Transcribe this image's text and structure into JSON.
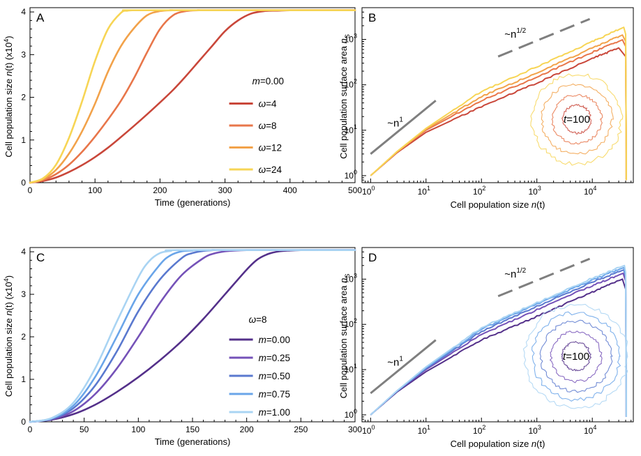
{
  "chart_data": [
    {
      "panel": "A",
      "type": "line",
      "xlabel": "Time (generations)",
      "ylabel_main": "Cell population size ",
      "ylabel_italic": "n",
      "ylabel_tail": "(t) (x10",
      "ylabel_sup": "4",
      "ylabel_close": ")",
      "xlim": [
        0,
        500
      ],
      "ylim": [
        0,
        4.1
      ],
      "xticks": [
        0,
        100,
        200,
        300,
        400,
        500
      ],
      "yticks": [
        0,
        1,
        2,
        3,
        4
      ],
      "legend_title_var": "m",
      "legend_title_val": "=0.00",
      "legend_position": "center-right",
      "series": [
        {
          "name_var": "ω",
          "name_val": "=4",
          "color": "#c9473a",
          "x": [
            0,
            20,
            40,
            60,
            80,
            100,
            120,
            140,
            160,
            180,
            200,
            220,
            240,
            260,
            280,
            300,
            320,
            340,
            360,
            380,
            400,
            420,
            440,
            500
          ],
          "y": [
            0,
            0.04,
            0.12,
            0.25,
            0.41,
            0.6,
            0.82,
            1.07,
            1.33,
            1.6,
            1.88,
            2.17,
            2.5,
            2.85,
            3.2,
            3.55,
            3.8,
            3.96,
            4.02,
            4.03,
            4.04,
            4.04,
            4.04,
            4.04
          ]
        },
        {
          "name_var": "ω",
          "name_val": "=8",
          "color": "#e8764a",
          "x": [
            0,
            20,
            40,
            60,
            80,
            100,
            120,
            140,
            160,
            180,
            200,
            220,
            240,
            260,
            280,
            500
          ],
          "y": [
            0,
            0.06,
            0.2,
            0.42,
            0.72,
            1.08,
            1.48,
            1.92,
            2.45,
            3.05,
            3.6,
            3.92,
            4.02,
            4.04,
            4.04,
            4.04
          ]
        },
        {
          "name_var": "ω",
          "name_val": "=12",
          "color": "#f2a24a",
          "x": [
            0,
            20,
            40,
            60,
            80,
            100,
            120,
            140,
            160,
            180,
            200,
            220,
            240,
            500
          ],
          "y": [
            0,
            0.08,
            0.3,
            0.68,
            1.2,
            1.85,
            2.6,
            3.2,
            3.62,
            3.92,
            4.02,
            4.04,
            4.04,
            4.04
          ]
        },
        {
          "name_var": "ω",
          "name_val": "=24",
          "color": "#f7d555",
          "x": [
            0,
            20,
            40,
            60,
            80,
            100,
            120,
            140,
            150,
            160,
            170,
            500
          ],
          "y": [
            0,
            0.1,
            0.42,
            1.05,
            1.9,
            2.85,
            3.6,
            3.98,
            4.03,
            4.04,
            4.04,
            4.04
          ]
        }
      ]
    },
    {
      "panel": "B",
      "type": "line",
      "scale": "log-log",
      "xlabel_main": "Cell population size ",
      "xlabel_italic": "n",
      "xlabel_tail": "(t)",
      "ylabel_main": "Cell population surface area ",
      "ylabel_italic": "n",
      "ylabel_sub": "S",
      "xlim": [
        0.7,
        55000
      ],
      "ylim": [
        0.7,
        5000
      ],
      "xtick_exponents": [
        0,
        1,
        2,
        3,
        4
      ],
      "ytick_exponents": [
        0,
        1,
        2,
        3
      ],
      "annotations": [
        {
          "text": "~n",
          "sup": "1"
        },
        {
          "text": "~n",
          "sup": "1/2"
        },
        {
          "italic": "t",
          "text": "=100"
        }
      ],
      "guide_slopes": [
        1,
        0.5
      ],
      "series": [
        {
          "name": "ω=4",
          "color": "#c9473a",
          "x": [
            1,
            3,
            10,
            100,
            1000,
            10000,
            30000,
            40000,
            41000,
            41000
          ],
          "y": [
            1,
            3.2,
            9,
            33,
            110,
            380,
            650,
            420,
            3,
            0.8
          ]
        },
        {
          "name": "ω=8",
          "color": "#e8764a",
          "x": [
            1,
            3,
            10,
            100,
            1000,
            10000,
            35000,
            40000,
            41000,
            41000
          ],
          "y": [
            1,
            3.3,
            10,
            45,
            150,
            520,
            980,
            700,
            3,
            0.8
          ]
        },
        {
          "name": "ω=12",
          "color": "#f2a24a",
          "x": [
            1,
            3,
            10,
            100,
            1000,
            10000,
            35000,
            40000,
            41000,
            41000
          ],
          "y": [
            1,
            3.3,
            10.5,
            55,
            185,
            650,
            1250,
            900,
            3,
            0.8
          ]
        },
        {
          "name": "ω=24",
          "color": "#f7d555",
          "x": [
            1,
            3,
            10,
            100,
            1000,
            10000,
            37000,
            40000,
            41000,
            41000
          ],
          "y": [
            1,
            3.4,
            11,
            72,
            250,
            900,
            1850,
            1300,
            3,
            0.8
          ]
        }
      ]
    },
    {
      "panel": "C",
      "type": "line",
      "xlabel": "Time (generations)",
      "ylabel_main": "Cell population size ",
      "ylabel_italic": "n",
      "ylabel_tail": "(t) (x10",
      "ylabel_sup": "4",
      "ylabel_close": ")",
      "xlim": [
        0,
        300
      ],
      "ylim": [
        0,
        4.1
      ],
      "xticks": [
        0,
        50,
        100,
        150,
        200,
        250,
        300
      ],
      "yticks": [
        0,
        1,
        2,
        3,
        4
      ],
      "legend_title_var": "ω",
      "legend_title_val": "=8",
      "legend_position": "center-right",
      "series": [
        {
          "name_var": "m",
          "name_val": "=0.00",
          "color": "#54308a",
          "x": [
            0,
            20,
            40,
            60,
            80,
            100,
            120,
            140,
            160,
            180,
            200,
            210,
            220,
            230,
            240,
            250,
            260,
            300
          ],
          "y": [
            0,
            0.05,
            0.18,
            0.4,
            0.7,
            1.05,
            1.45,
            1.9,
            2.42,
            3.0,
            3.58,
            3.82,
            3.95,
            4.01,
            4.03,
            4.04,
            4.04,
            4.04
          ]
        },
        {
          "name_var": "m",
          "name_val": "=0.25",
          "color": "#7552b8",
          "x": [
            0,
            20,
            40,
            60,
            80,
            100,
            120,
            140,
            160,
            170,
            180,
            190,
            200,
            210,
            300
          ],
          "y": [
            0,
            0.06,
            0.25,
            0.65,
            1.25,
            2.0,
            2.8,
            3.45,
            3.85,
            3.96,
            4.01,
            4.03,
            4.04,
            4.04,
            4.04
          ]
        },
        {
          "name_var": "m",
          "name_val": "=0.50",
          "color": "#5a79cf",
          "x": [
            0,
            20,
            40,
            60,
            80,
            100,
            120,
            140,
            150,
            160,
            170,
            180,
            300
          ],
          "y": [
            0,
            0.07,
            0.32,
            0.85,
            1.65,
            2.6,
            3.35,
            3.85,
            3.97,
            4.02,
            4.04,
            4.04,
            4.04
          ]
        },
        {
          "name_var": "m",
          "name_val": "=0.75",
          "color": "#6aa5e9",
          "x": [
            0,
            20,
            40,
            60,
            80,
            100,
            120,
            130,
            140,
            150,
            160,
            300
          ],
          "y": [
            0,
            0.08,
            0.38,
            1.05,
            2.0,
            3.0,
            3.7,
            3.92,
            4.01,
            4.03,
            4.04,
            4.04
          ]
        },
        {
          "name_var": "m",
          "name_val": "=1.00",
          "color": "#a9d4f3",
          "x": [
            0,
            20,
            40,
            60,
            80,
            100,
            110,
            120,
            130,
            140,
            300
          ],
          "y": [
            0,
            0.09,
            0.45,
            1.25,
            2.35,
            3.4,
            3.78,
            3.97,
            4.02,
            4.04,
            4.04
          ]
        }
      ]
    },
    {
      "panel": "D",
      "type": "line",
      "scale": "log-log",
      "xlabel_main": "Cell population size ",
      "xlabel_italic": "n",
      "xlabel_tail": "(t)",
      "ylabel_main": "Cell population surface area ",
      "ylabel_italic": "n",
      "ylabel_sub": "S",
      "xlim": [
        0.7,
        55000
      ],
      "ylim": [
        0.7,
        5000
      ],
      "xtick_exponents": [
        0,
        1,
        2,
        3,
        4
      ],
      "ytick_exponents": [
        0,
        1,
        2,
        3
      ],
      "annotations": [
        {
          "text": "~n",
          "sup": "1"
        },
        {
          "text": "~n",
          "sup": "1/2"
        },
        {
          "italic": "t",
          "text": "=100"
        }
      ],
      "guide_slopes": [
        1,
        0.5
      ],
      "series": [
        {
          "name": "m=0.00",
          "color": "#54308a",
          "x": [
            1,
            3,
            10,
            100,
            1000,
            10000,
            35000,
            40000,
            41000,
            41000
          ],
          "y": [
            1,
            3.2,
            9,
            45,
            150,
            520,
            1000,
            600,
            3,
            0.9
          ]
        },
        {
          "name": "m=0.25",
          "color": "#7552b8",
          "x": [
            1,
            3,
            10,
            100,
            1000,
            10000,
            36000,
            40000,
            41000,
            41000
          ],
          "y": [
            1,
            3.3,
            10,
            60,
            210,
            720,
            1350,
            900,
            3,
            0.9
          ]
        },
        {
          "name": "m=0.50",
          "color": "#5a79cf",
          "x": [
            1,
            3,
            10,
            100,
            1000,
            10000,
            37000,
            40000,
            41000,
            41000
          ],
          "y": [
            1,
            3.3,
            10.5,
            70,
            250,
            860,
            1600,
            1100,
            3,
            0.9
          ]
        },
        {
          "name": "m=0.75",
          "color": "#6aa5e9",
          "x": [
            1,
            3,
            10,
            100,
            1000,
            10000,
            37000,
            40000,
            41000,
            41000
          ],
          "y": [
            1,
            3.4,
            11,
            78,
            280,
            960,
            1800,
            1250,
            3,
            0.9
          ]
        },
        {
          "name": "m=1.00",
          "color": "#a9d4f3",
          "x": [
            1,
            3,
            10,
            100,
            1000,
            10000,
            38000,
            40000,
            41000,
            41000
          ],
          "y": [
            1,
            3.4,
            11.5,
            85,
            300,
            1050,
            2000,
            1400,
            3,
            0.9
          ]
        }
      ]
    }
  ]
}
